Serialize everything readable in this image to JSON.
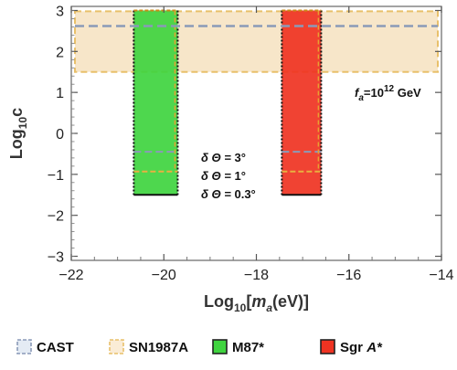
{
  "chart_data": {
    "type": "region",
    "xlabel_prefix": "Log",
    "xlabel_sub": "10",
    "xlabel_bracket_open": "[",
    "xlabel_var": "m",
    "xlabel_var_sub": "a",
    "xlabel_unit": "(eV)]",
    "ylabel_prefix": "Log",
    "ylabel_sub": "10",
    "ylabel_var": "c",
    "xlim": [
      -22,
      -14
    ],
    "ylim": [
      -3.1,
      3.1
    ],
    "xticks": [
      -22,
      -20,
      -18,
      -16,
      -14
    ],
    "xtick_labels": [
      "−22",
      "−20",
      "−18",
      "−16",
      "−14"
    ],
    "yticks": [
      3,
      2,
      1,
      0,
      -1,
      -2,
      -3
    ],
    "ytick_labels": [
      "3",
      "2",
      "1",
      "0",
      "−1",
      "−2",
      "−3"
    ],
    "grid": false,
    "legend_position": "bottom",
    "bands": [
      {
        "name": "CAST",
        "y": 2.62,
        "color": "#8a9ab8",
        "style": "dashed"
      },
      {
        "name": "SN1987A",
        "y_range": [
          1.5,
          2.98
        ],
        "color": "#e8c06a",
        "fill": "#f6e2c0",
        "style": "dashed"
      }
    ],
    "regions": [
      {
        "name": "M87*",
        "x_range": [
          -20.65,
          -19.7
        ],
        "y_range": [
          -1.5,
          3.0
        ],
        "color": "#3fd43f",
        "contours": [
          {
            "label": "3°",
            "y": -0.45
          },
          {
            "label": "1°",
            "y": -0.93
          },
          {
            "label": "0.3°",
            "y": -1.5
          }
        ]
      },
      {
        "name": "Sgr A*",
        "x_range": [
          -17.45,
          -16.6
        ],
        "y_range": [
          -1.5,
          3.0
        ],
        "color": "#ef3322",
        "contours": [
          {
            "label": "3°",
            "y": -0.45
          },
          {
            "label": "1°",
            "y": -0.93
          },
          {
            "label": "0.3°",
            "y": -1.5
          }
        ]
      }
    ],
    "annotations": {
      "fa_symbol": "f",
      "fa_sub": "a",
      "fa_eq": "=10",
      "fa_exp": "12",
      "fa_unit": " GeV",
      "dtheta_prefix": "δ Θ = ",
      "dtheta_values": [
        "3°",
        "1°",
        "0.3°"
      ]
    },
    "legend": [
      {
        "label": "CAST",
        "color": "#8a9ab8",
        "fill": "#e4ebf4",
        "style": "dashed"
      },
      {
        "label": "SN1987A",
        "color": "#e8c06a",
        "fill": "#faecd6",
        "style": "dashed"
      },
      {
        "label": "M87*",
        "color": "#222222",
        "fill": "#3fd43f",
        "style": "solid"
      },
      {
        "label_main": "Sgr ",
        "label_italic": "A*",
        "color": "#222222",
        "fill": "#ef3322",
        "style": "solid"
      }
    ]
  }
}
